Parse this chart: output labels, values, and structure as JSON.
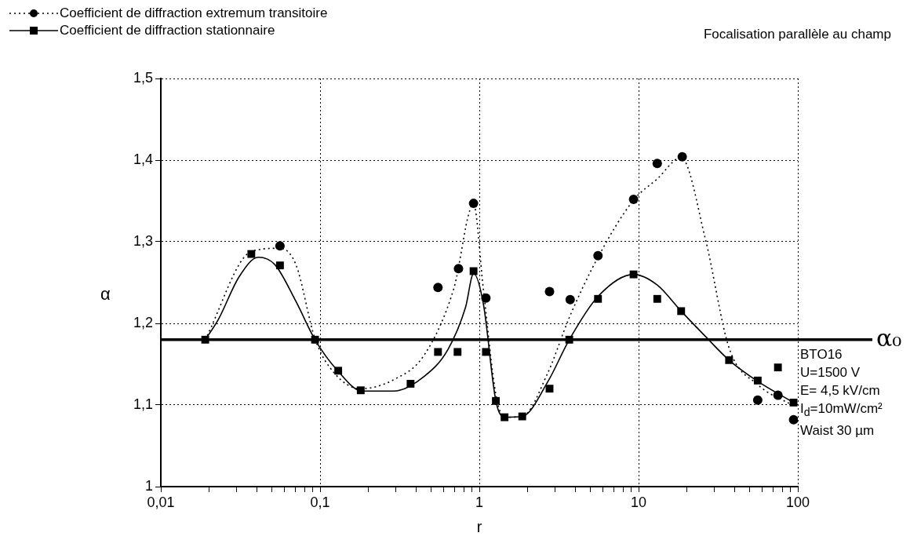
{
  "chart_data": {
    "type": "scatter",
    "title": "Focalisation parallèle au champ",
    "xlabel": "r",
    "ylabel": "α",
    "log": "x",
    "grid": true,
    "legend": "top left",
    "xlim": [
      0.01,
      100
    ],
    "ylim": [
      1,
      1.5
    ],
    "xticks": [
      {
        "value": 0.01,
        "label": "0,01"
      },
      {
        "value": 0.02,
        "label": null
      },
      {
        "value": 0.03,
        "label": null
      },
      {
        "value": 0.04,
        "label": null
      },
      {
        "value": 0.05,
        "label": null
      },
      {
        "value": 0.06,
        "label": null
      },
      {
        "value": 0.07,
        "label": null
      },
      {
        "value": 0.08,
        "label": null
      },
      {
        "value": 0.09,
        "label": null
      },
      {
        "value": 0.1,
        "label": "0,1"
      },
      {
        "value": 0.2,
        "label": null
      },
      {
        "value": 0.3,
        "label": null
      },
      {
        "value": 0.4,
        "label": null
      },
      {
        "value": 0.5,
        "label": null
      },
      {
        "value": 0.6,
        "label": null
      },
      {
        "value": 0.7,
        "label": null
      },
      {
        "value": 0.8,
        "label": null
      },
      {
        "value": 0.9,
        "label": null
      },
      {
        "value": 1,
        "label": "1"
      },
      {
        "value": 2,
        "label": null
      },
      {
        "value": 3,
        "label": null
      },
      {
        "value": 4,
        "label": null
      },
      {
        "value": 5,
        "label": null
      },
      {
        "value": 6,
        "label": null
      },
      {
        "value": 7,
        "label": null
      },
      {
        "value": 8,
        "label": null
      },
      {
        "value": 9,
        "label": null
      },
      {
        "value": 10,
        "label": "10"
      },
      {
        "value": 20,
        "label": null
      },
      {
        "value": 30,
        "label": null
      },
      {
        "value": 40,
        "label": null
      },
      {
        "value": 50,
        "label": null
      },
      {
        "value": 60,
        "label": null
      },
      {
        "value": 70,
        "label": null
      },
      {
        "value": 80,
        "label": null
      },
      {
        "value": 90,
        "label": null
      },
      {
        "value": 100,
        "label": "100"
      }
    ],
    "yticks": [
      {
        "value": 1,
        "label": "1"
      },
      {
        "value": 1.1,
        "label": "1,1"
      },
      {
        "value": 1.2,
        "label": "1,2"
      },
      {
        "value": 1.3,
        "label": "1,3"
      },
      {
        "value": 1.4,
        "label": "1,4"
      },
      {
        "value": 1.5,
        "label": "1,5"
      }
    ],
    "series": [
      {
        "name": "Coefficient de diffraction extremum transitoire",
        "type": "scatter",
        "marker": "circle",
        "color": "#000000",
        "x": [
          0.056,
          0.55,
          0.74,
          0.92,
          1.1,
          2.76,
          3.72,
          5.56,
          9.3,
          13.1,
          18.8,
          56,
          75,
          94
        ],
        "values": [
          1.295,
          1.244,
          1.267,
          1.347,
          1.231,
          1.239,
          1.229,
          1.283,
          1.352,
          1.396,
          1.404,
          1.106,
          1.112,
          1.082
        ]
      },
      {
        "type": "line",
        "line_style": "dotted",
        "color": "#000000",
        "x": [
          0.019,
          0.037,
          0.056,
          0.0705,
          0.093,
          0.123,
          0.18,
          0.29,
          0.45,
          0.69,
          0.92,
          1.06,
          1.27,
          1.44,
          1.86,
          2.7,
          3.67,
          5.56,
          9.3,
          13.1,
          18.5,
          26.3,
          37,
          56,
          94
        ],
        "values": [
          1.18,
          1.288,
          1.292,
          1.272,
          1.181,
          1.139,
          1.12,
          1.131,
          1.161,
          1.242,
          1.346,
          1.242,
          1.113,
          1.085,
          1.086,
          1.14,
          1.207,
          1.281,
          1.351,
          1.377,
          1.403,
          1.303,
          1.17,
          1.125,
          1.099
        ]
      },
      {
        "name": "Coefficient de diffraction stationnaire",
        "type": "scatter",
        "marker": "square",
        "color": "#000000",
        "x": [
          0.019,
          0.037,
          0.056,
          0.093,
          0.13,
          0.18,
          0.37,
          0.55,
          0.73,
          0.92,
          1.1,
          1.27,
          1.44,
          1.86,
          2.76,
          3.67,
          5.56,
          9.3,
          13.1,
          18.5,
          37,
          56,
          75,
          94
        ],
        "values": [
          1.18,
          1.285,
          1.271,
          1.18,
          1.142,
          1.118,
          1.126,
          1.165,
          1.165,
          1.264,
          1.165,
          1.105,
          1.085,
          1.086,
          1.12,
          1.18,
          1.23,
          1.26,
          1.23,
          1.215,
          1.155,
          1.13,
          1.146,
          1.103
        ]
      },
      {
        "type": "line",
        "line_style": "solid",
        "color": "#000000",
        "x": [
          0.019,
          0.023,
          0.031,
          0.041,
          0.052,
          0.0705,
          0.093,
          0.129,
          0.184,
          0.29,
          0.45,
          0.635,
          0.82,
          0.92,
          1.06,
          1.27,
          1.44,
          1.86,
          2.7,
          3.67,
          5.56,
          9.3,
          13.1,
          18.5,
          26.3,
          37,
          56,
          94
        ],
        "values": [
          1.18,
          1.205,
          1.257,
          1.281,
          1.272,
          1.227,
          1.18,
          1.142,
          1.117,
          1.117,
          1.135,
          1.168,
          1.22,
          1.261,
          1.224,
          1.105,
          1.085,
          1.086,
          1.129,
          1.18,
          1.233,
          1.26,
          1.247,
          1.215,
          1.184,
          1.155,
          1.129,
          1.103
        ]
      }
    ],
    "ref_lines": [
      {
        "axis": "y",
        "value": 1.18,
        "label": "α₀",
        "color": "#000000"
      }
    ],
    "annotations": [
      "BTO16",
      "U=1500 V",
      "E= 4,5 kV/cm",
      "I$_{d}$=10mW/cm²",
      "Waist 30 µm"
    ]
  }
}
